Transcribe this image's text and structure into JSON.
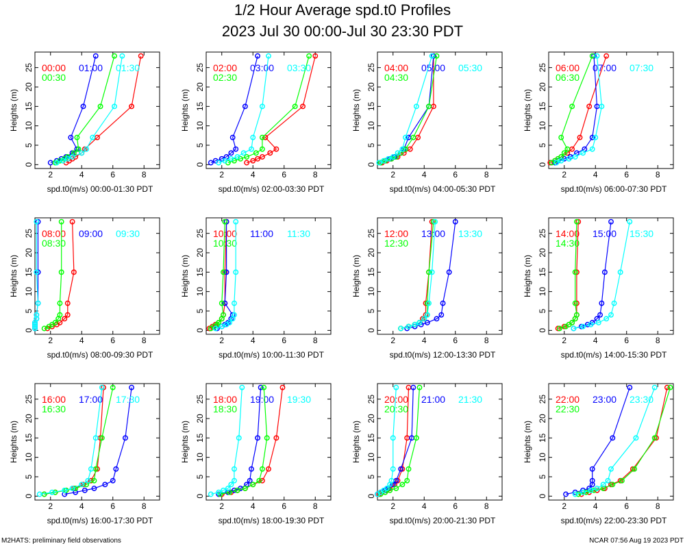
{
  "title_line1": "1/2 Hour Average spd.t0 Profiles",
  "title_line2": "2023 Jul 30 00:00-Jul 30 23:30 PDT",
  "footer_left": "M2HATS: preliminary field observations",
  "footer_right": "NCAR 07:56 Aug 19 2023 PDT",
  "colors": {
    "c0": "#ff0000",
    "c1": "#0000ff",
    "c2": "#00ff00",
    "c3": "#00ffff"
  },
  "chart_data": {
    "type": "scatter",
    "shared": {
      "heights": [
        0.5,
        1,
        1.5,
        2,
        3,
        4,
        7,
        15,
        28
      ],
      "xlim": [
        1,
        9
      ],
      "ylim": [
        -1,
        29
      ],
      "xticks": [
        2,
        4,
        6,
        8
      ],
      "yticks": [
        0,
        5,
        10,
        15,
        20,
        25
      ],
      "ylabel": "Heights (m)",
      "series_colors": [
        "#ff0000",
        "#0000ff",
        "#00ff00",
        "#00ffff"
      ]
    },
    "panels": [
      {
        "xlabel": "spd.t0(m/s) 00:00-01:30 PDT",
        "series": [
          {
            "name": "00:00",
            "values": [
              3.0,
              3.2,
              3.4,
              3.6,
              4.0,
              4.2,
              5.0,
              7.2,
              7.8
            ]
          },
          {
            "name": "01:00",
            "values": [
              2.0,
              2.4,
              2.7,
              3.0,
              3.4,
              3.7,
              3.3,
              4.1,
              4.9
            ]
          },
          {
            "name": "00:30",
            "values": [
              2.3,
              2.6,
              2.9,
              3.1,
              3.5,
              3.8,
              3.7,
              5.2,
              6.1
            ]
          },
          {
            "name": "01:30",
            "values": [
              2.4,
              2.8,
              3.1,
              3.4,
              4.0,
              4.3,
              4.7,
              6.1,
              6.6
            ]
          }
        ]
      },
      {
        "xlabel": "spd.t0(m/s) 02:00-03:30 PDT",
        "series": [
          {
            "name": "02:00",
            "values": [
              3.6,
              4.0,
              4.3,
              4.6,
              5.1,
              5.5,
              4.8,
              7.2,
              8.0
            ]
          },
          {
            "name": "03:00",
            "values": [
              1.3,
              1.6,
              2.0,
              2.3,
              2.6,
              2.9,
              2.7,
              3.5,
              4.3
            ]
          },
          {
            "name": "02:30",
            "values": [
              2.4,
              2.8,
              3.2,
              3.6,
              4.2,
              4.6,
              4.6,
              6.7,
              7.6
            ]
          },
          {
            "name": "03:30",
            "values": [
              1.8,
              2.2,
              2.6,
              3.0,
              3.4,
              3.9,
              4.0,
              4.6,
              5.0
            ]
          }
        ]
      },
      {
        "xlabel": "spd.t0(m/s) 04:00-05:30 PDT",
        "series": [
          {
            "name": "04:00",
            "values": [
              1.3,
              1.6,
              1.9,
              2.3,
              2.7,
              3.1,
              3.6,
              4.6,
              4.6
            ]
          },
          {
            "name": "05:00",
            "values": [
              1.2,
              1.5,
              1.8,
              2.1,
              2.5,
              2.7,
              3.0,
              4.3,
              4.6
            ]
          },
          {
            "name": "04:30",
            "values": [
              1.2,
              1.5,
              1.9,
              2.2,
              2.5,
              2.8,
              3.3,
              4.3,
              4.8
            ]
          },
          {
            "name": "05:30",
            "values": [
              1.1,
              1.4,
              1.7,
              2.0,
              2.3,
              2.6,
              2.8,
              3.5,
              4.5
            ]
          }
        ]
      },
      {
        "xlabel": "spd.t0(m/s) 06:00-07:30 PDT",
        "series": [
          {
            "name": "06:00",
            "values": [
              1.1,
              1.4,
              1.6,
              1.8,
              2.2,
              2.5,
              3.0,
              3.6,
              4.7
            ]
          },
          {
            "name": "07:00",
            "values": [
              1.4,
              1.6,
              2.0,
              2.4,
              2.8,
              3.3,
              3.8,
              4.1,
              3.9
            ]
          },
          {
            "name": "06:30",
            "values": [
              1.2,
              1.4,
              1.6,
              1.8,
              2.0,
              2.2,
              1.8,
              2.5,
              3.8
            ]
          },
          {
            "name": "07:30",
            "values": [
              1.5,
              1.8,
              2.3,
              2.7,
              3.2,
              3.8,
              4.0,
              4.4,
              4.1
            ]
          }
        ]
      },
      {
        "xlabel": "spd.t0(m/s) 08:00-09:30 PDT",
        "series": [
          {
            "name": "08:00",
            "values": [
              1.8,
              2.1,
              2.4,
              2.6,
              2.9,
              3.1,
              3.1,
              3.5,
              3.4
            ]
          },
          {
            "name": "09:00",
            "values": [
              1.0,
              1.0,
              1.0,
              1.0,
              1.1,
              1.1,
              1.2,
              1.2,
              1.2
            ]
          },
          {
            "name": "08:30",
            "values": [
              1.6,
              1.9,
              2.1,
              2.3,
              2.5,
              2.6,
              2.6,
              2.7,
              2.7
            ]
          },
          {
            "name": "09:30",
            "values": [
              1.0,
              1.0,
              1.0,
              1.0,
              1.1,
              1.1,
              1.2,
              1.1,
              1.1
            ]
          }
        ]
      },
      {
        "xlabel": "spd.t0(m/s) 10:00-11:30 PDT",
        "series": [
          {
            "name": "10:00",
            "values": [
              1.2,
              1.4,
              1.6,
              1.8,
              2.0,
              2.1,
              2.2,
              2.2,
              2.3
            ]
          },
          {
            "name": "11:00",
            "values": [
              1.7,
              2.0,
              2.2,
              2.4,
              2.6,
              2.7,
              2.2,
              2.3,
              2.3
            ]
          },
          {
            "name": "10:30",
            "values": [
              1.3,
              1.5,
              1.7,
              1.8,
              2.0,
              2.1,
              2.0,
              2.1,
              2.2
            ]
          },
          {
            "name": "11:30",
            "values": [
              1.6,
              2.0,
              2.3,
              2.5,
              2.7,
              2.8,
              2.8,
              2.9,
              2.9
            ]
          }
        ]
      },
      {
        "xlabel": "spd.t0(m/s) 12:00-13:30 PDT",
        "series": [
          {
            "name": "12:00",
            "values": [
              2.5,
              3.0,
              3.4,
              3.7,
              3.9,
              4.1,
              4.1,
              4.3,
              4.5
            ]
          },
          {
            "name": "13:00",
            "values": [
              2.9,
              3.4,
              3.8,
              4.2,
              4.8,
              5.1,
              5.2,
              5.6,
              6.0
            ]
          },
          {
            "name": "12:30",
            "values": [
              2.5,
              3.0,
              3.4,
              3.7,
              4.0,
              4.2,
              4.2,
              4.3,
              4.6
            ]
          },
          {
            "name": "13:30",
            "values": [
              2.5,
              3.0,
              3.4,
              3.7,
              4.0,
              4.2,
              4.3,
              4.5,
              4.7
            ]
          }
        ]
      },
      {
        "xlabel": "spd.t0(m/s) 14:00-15:30 PDT",
        "series": [
          {
            "name": "14:00",
            "values": [
              1.6,
              2.0,
              2.3,
              2.5,
              2.7,
              2.8,
              2.8,
              2.8,
              2.9
            ]
          },
          {
            "name": "15:00",
            "values": [
              2.6,
              3.1,
              3.5,
              3.8,
              4.1,
              4.3,
              4.4,
              4.6,
              5.0
            ]
          },
          {
            "name": "14:30",
            "values": [
              1.7,
              2.1,
              2.3,
              2.5,
              2.7,
              2.8,
              2.7,
              2.7,
              2.8
            ]
          },
          {
            "name": "15:30",
            "values": [
              2.6,
              3.2,
              3.7,
              4.2,
              4.7,
              5.0,
              5.2,
              5.6,
              6.2
            ]
          }
        ]
      },
      {
        "xlabel": "spd.t0(m/s) 16:00-17:30 PDT",
        "series": [
          {
            "name": "16:00",
            "values": [
              1.6,
              2.3,
              3.0,
              3.5,
              4.1,
              4.6,
              5.0,
              5.2,
              5.4
            ]
          },
          {
            "name": "17:00",
            "values": [
              2.9,
              3.6,
              4.2,
              4.8,
              5.5,
              6.0,
              6.2,
              6.8,
              7.2
            ]
          },
          {
            "name": "16:30",
            "values": [
              1.6,
              2.3,
              3.0,
              3.6,
              4.3,
              4.8,
              4.9,
              5.3,
              6.0
            ]
          },
          {
            "name": "17:30",
            "values": [
              1.3,
              2.1,
              2.9,
              3.4,
              4.0,
              4.4,
              4.6,
              4.9,
              5.3
            ]
          }
        ]
      },
      {
        "xlabel": "spd.t0(m/s) 18:00-19:30 PDT",
        "series": [
          {
            "name": "18:00",
            "values": [
              2.0,
              2.6,
              3.0,
              3.5,
              4.0,
              4.6,
              5.0,
              5.5,
              5.9
            ]
          },
          {
            "name": "19:00",
            "values": [
              1.8,
              2.4,
              2.8,
              3.2,
              3.6,
              3.8,
              3.9,
              4.3,
              4.5
            ]
          },
          {
            "name": "18:30",
            "values": [
              1.9,
              2.5,
              3.0,
              3.5,
              4.0,
              4.4,
              4.6,
              4.9,
              4.7
            ]
          },
          {
            "name": "19:30",
            "values": [
              1.3,
              1.8,
              2.1,
              2.4,
              2.6,
              2.8,
              2.8,
              3.1,
              3.3
            ]
          }
        ]
      },
      {
        "xlabel": "spd.t0(m/s) 20:00-21:30 PDT",
        "series": [
          {
            "name": "20:00",
            "values": [
              1.1,
              1.3,
              1.6,
              1.8,
              2.1,
              2.3,
              2.6,
              2.9,
              3.0
            ]
          },
          {
            "name": "21:00",
            "values": [
              1.0,
              1.2,
              1.5,
              1.7,
              2.0,
              2.2,
              2.5,
              3.2,
              3.3
            ]
          },
          {
            "name": "20:30",
            "values": [
              1.2,
              1.5,
              1.8,
              2.2,
              2.6,
              2.9,
              3.0,
              3.5,
              3.7
            ]
          },
          {
            "name": "21:30",
            "values": [
              1.0,
              1.2,
              1.4,
              1.6,
              1.8,
              1.9,
              2.0,
              2.0,
              2.2
            ]
          }
        ]
      },
      {
        "xlabel": "spd.t0(m/s) 22:00-23:30 PDT",
        "series": [
          {
            "name": "22:00",
            "values": [
              3.1,
              3.6,
              4.1,
              4.6,
              5.0,
              5.6,
              6.4,
              7.9,
              8.6
            ]
          },
          {
            "name": "23:00",
            "values": [
              2.1,
              2.7,
              3.2,
              3.6,
              3.8,
              3.8,
              3.8,
              5.1,
              6.2
            ]
          },
          {
            "name": "22:30",
            "values": [
              2.9,
              3.4,
              3.9,
              4.5,
              5.1,
              5.7,
              6.5,
              7.8,
              8.8
            ]
          },
          {
            "name": "23:30",
            "values": [
              2.7,
              3.2,
              3.7,
              4.1,
              4.5,
              4.8,
              5.0,
              6.6,
              7.8
            ]
          }
        ]
      }
    ]
  }
}
